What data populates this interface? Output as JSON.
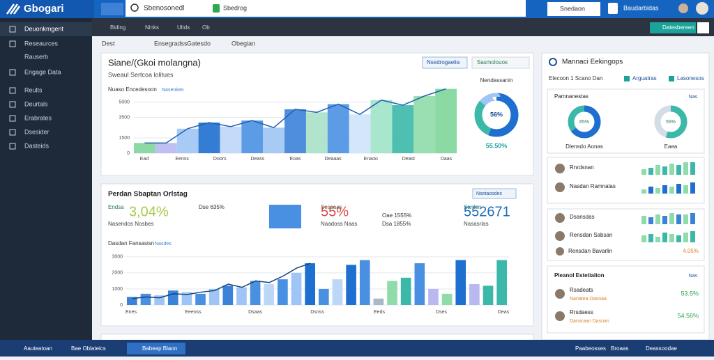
{
  "topbar": {
    "logo": "Gbogari",
    "search": "Sbenosonedl",
    "tab": "Sbedrog",
    "right_button": "Snedaon",
    "account": "Baudarbidas"
  },
  "sidebar": {
    "items": [
      "Deuonkmgent",
      "Reseaurces",
      "Rauserb",
      "Engage Data",
      "Reults",
      "Deurtals",
      "Erabrates",
      "Dsesider",
      "Dasteids"
    ]
  },
  "subnav": {
    "tabs": [
      "Biding",
      "Ninks",
      "Ultds",
      "Ob"
    ],
    "button": "Datesbereen"
  },
  "breadcrumbs": [
    "Dest",
    "Ensegradss",
    "Gatesdo",
    "Obegian"
  ],
  "panel1": {
    "title": "Siane/(Gkoi molangna)",
    "subtitle": "Sweaul Sertcoa lolitues",
    "filter1": "Nsedrogaelia",
    "filter2": "Sasmolouos",
    "chart": {
      "label": "Nuaso Encedesoon",
      "tag": "Nasenkeo",
      "ylim": [
        0,
        6000
      ],
      "yticks": [
        0,
        1500,
        3500,
        5000
      ],
      "xlabels": [
        "Ead",
        "Eenss",
        "Doors",
        "Deass",
        "Eoas",
        "Deaaas",
        "Enaoo",
        "Deast",
        "Daas"
      ],
      "values": [
        1000,
        1000,
        2400,
        3000,
        2600,
        3200,
        2500,
        4300,
        4000,
        4800,
        3800,
        5200,
        4700,
        5600,
        6300
      ],
      "colors": [
        "#7ed69a",
        "#b9b8f0",
        "#9ec5f5",
        "#1e6fd0",
        "#bcd7f7",
        "#4a90e2",
        "#9ec5f5",
        "#3b82d9",
        "#a8e0c8",
        "#4a90e2",
        "#cfe3fa",
        "#9fe3c9",
        "#3cb8a8",
        "#8fdcaa",
        "#7ed69a"
      ]
    },
    "donut": {
      "label": "Nendassanin",
      "center": "56%",
      "caption": "55.50%",
      "values": [
        56,
        30,
        14
      ],
      "colors": [
        "#1e6fd0",
        "#3cb8a8",
        "#9ec5f5"
      ]
    }
  },
  "panel2": {
    "title": "Perdan Sbaptan Orlstag",
    "dropdown": "Nsetaosdes",
    "kpis": [
      {
        "label": "Endsa",
        "value": "3,04%",
        "sub": "Nasendos Nosbes"
      },
      {
        "label": "Sessaas",
        "value": "55%",
        "sub": "Naadoss Naas"
      },
      {
        "label": "Santen",
        "value": "552671",
        "sub": "Nasasrlas"
      }
    ],
    "mini": [
      "Dse 635%",
      "Oae 1555%",
      "Dsa 1855%"
    ],
    "chart": {
      "label": "Dasdan Fansasisn",
      "tag": "Nasdes",
      "ylim": [
        0,
        3600
      ],
      "yticks": [
        0,
        1000,
        2000,
        3000
      ],
      "values": [
        500,
        700,
        600,
        900,
        800,
        700,
        1000,
        1200,
        1100,
        1500,
        1300,
        1600,
        2000,
        2600,
        1000,
        1600,
        2500,
        2800,
        400,
        1500,
        1700,
        2600,
        1000,
        700,
        2800,
        1300,
        1200,
        2800
      ],
      "colors": [
        "#3b82d9",
        "#4a90e2",
        "#9ec5f5",
        "#3b82d9",
        "#9ec5f5",
        "#4a90e2",
        "#9ec5f5",
        "#3b82d9",
        "#9ec5f5",
        "#4a90e2",
        "#bcd7f7",
        "#4a90e2",
        "#9ec5f5",
        "#1e6fd0",
        "#4a90e2",
        "#bcd7f7",
        "#1e6fd0",
        "#4a90e2",
        "#aab8c8",
        "#8fdcaa",
        "#3cb8a8",
        "#4a90e2",
        "#b9b8f0",
        "#8fdcaa",
        "#1e6fd0",
        "#b9b8f0",
        "#3cb8a8",
        "#3cb8a8"
      ],
      "line": [
        400,
        500,
        450,
        700,
        650,
        800,
        900,
        1300,
        1100,
        1500,
        1400,
        1800,
        2300,
        2600
      ],
      "xlabels": [
        "Enes",
        "Eeeoss",
        "Dsaas",
        "Dsnss",
        "Eeds",
        "Dses",
        "Deas"
      ]
    }
  },
  "right": {
    "title": "Mannaci Eekingops",
    "filters": [
      "Elecoon 1 Scano Dan",
      "Arguatras",
      "Lasonesos"
    ],
    "donut_card": {
      "title": "Pamnanestas",
      "badge": "Nas",
      "donuts": [
        {
          "center": "65%",
          "caption": "Dlensdo Aonas",
          "values": [
            65,
            35
          ]
        },
        {
          "center": "55%",
          "caption": "Eaea",
          "values": [
            55,
            45
          ]
        }
      ]
    },
    "people": [
      {
        "name": "Rnrdsnan",
        "bars": [
          4,
          5,
          7,
          6,
          8,
          7,
          9,
          9
        ]
      },
      {
        "name": "Nasdan Ramnalas",
        "bars": [
          3,
          5,
          4,
          6,
          5,
          7,
          6,
          8
        ]
      },
      {
        "name": "Dsansdas",
        "bars": [
          6,
          5,
          7,
          6,
          8,
          7,
          7,
          8
        ]
      },
      {
        "name": "Rensdan Sabsan",
        "bars": [
          5,
          6,
          4,
          7,
          6,
          5,
          7,
          8
        ]
      }
    ],
    "rating": {
      "name": "Rensdan Bavarlin",
      "value": "4.05%"
    },
    "card3": {
      "title": "Pleanol Estetiaiton",
      "badge": "Nas",
      "rows": [
        {
          "name": "Rsadeats",
          "sub": "Nanatea Oasnaa",
          "value": "53.5%"
        },
        {
          "name": "Rrsdaess",
          "sub": "Danoraan Dasnan",
          "value": "54.56%"
        }
      ]
    }
  },
  "taskbar": {
    "items": [
      "Aauteatoan",
      "Bae Oblateics",
      "Babeap Blaon"
    ],
    "right": [
      "Paabeosses",
      "Broaas",
      "Deassoodae"
    ]
  }
}
